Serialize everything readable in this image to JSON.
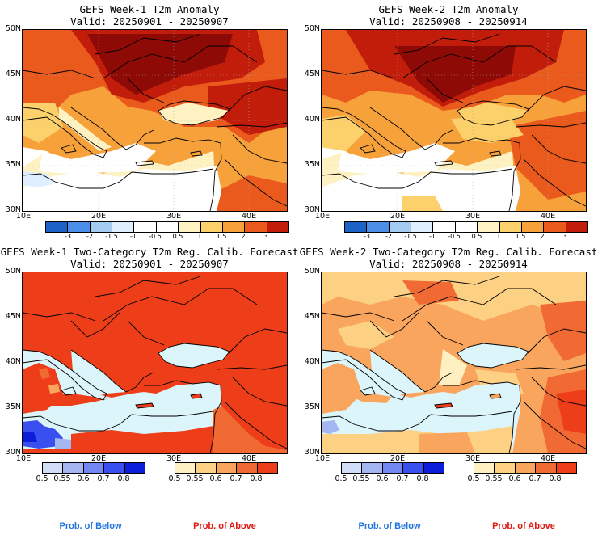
{
  "colors": {
    "anom": [
      "#1d63c6",
      "#4a8ee8",
      "#a3cbf1",
      "#dfefff",
      "#ffffff",
      "#ffffff",
      "#fff2c2",
      "#fcd06a",
      "#f7a13a",
      "#ea5a1d",
      "#c21d0b",
      "#8d0a06"
    ],
    "below": [
      "#d2def7",
      "#a3b6f2",
      "#7287f2",
      "#3a4fef",
      "#0c1ed9"
    ],
    "above": [
      "#fff0c2",
      "#fdd183",
      "#f9a55d",
      "#f26a33",
      "#ee3e19"
    ],
    "ocean": "#dbf5fb",
    "footer_below": "#1f74e0",
    "footer_above": "#e0160f"
  },
  "panels": [
    {
      "title": "GEFS Week-1 T2m Anomaly",
      "valid": "Valid: 20250901 - 20250907",
      "lat_ticks": [
        "50N",
        "45N",
        "40N",
        "35N",
        "30N"
      ],
      "lon_ticks": [
        "10E",
        "20E",
        "30E",
        "40E"
      ],
      "colorbar": "anomaly",
      "colorbar_labels": [
        "-3",
        "-2",
        "-1.5",
        "-1",
        "-0.5",
        "0.5",
        "1",
        "1.5",
        "2",
        "3"
      ]
    },
    {
      "title": "GEFS Week-2 T2m Anomaly",
      "valid": "Valid: 20250908 - 20250914",
      "lat_ticks": [
        "50N",
        "45N",
        "40N",
        "35N",
        "30N"
      ],
      "lon_ticks": [
        "10E",
        "20E",
        "30E",
        "40E"
      ],
      "colorbar": "anomaly",
      "colorbar_labels": [
        "-3",
        "-2",
        "-1.5",
        "-1",
        "-0.5",
        "0.5",
        "1",
        "1.5",
        "2",
        "3"
      ]
    },
    {
      "title": "GEFS Week-1 Two-Category T2m Reg. Calib. Forecast",
      "valid": "Valid: 20250901 - 20250907",
      "lat_ticks": [
        "50N",
        "45N",
        "40N",
        "35N",
        "30N"
      ],
      "lon_ticks": [
        "10E",
        "20E",
        "30E",
        "40E"
      ],
      "colorbar": "probability",
      "colorbar_labels": [
        "0.5",
        "0.55",
        "0.6",
        "0.7",
        "0.8"
      ]
    },
    {
      "title": "GEFS Week-2 Two-Category T2m Reg. Calib. Forecast",
      "valid": "Valid: 20250908 - 20250914",
      "lat_ticks": [
        "50N",
        "45N",
        "40N",
        "35N",
        "30N"
      ],
      "lon_ticks": [
        "10E",
        "20E",
        "30E",
        "40E"
      ],
      "colorbar": "probability",
      "colorbar_labels": [
        "0.5",
        "0.55",
        "0.6",
        "0.7",
        "0.8"
      ]
    }
  ],
  "footer": {
    "below_left": "Prob. of Below",
    "above_left": "Prob. of Above",
    "below_right": "Prob. of Below",
    "above_right": "Prob. of Above"
  }
}
